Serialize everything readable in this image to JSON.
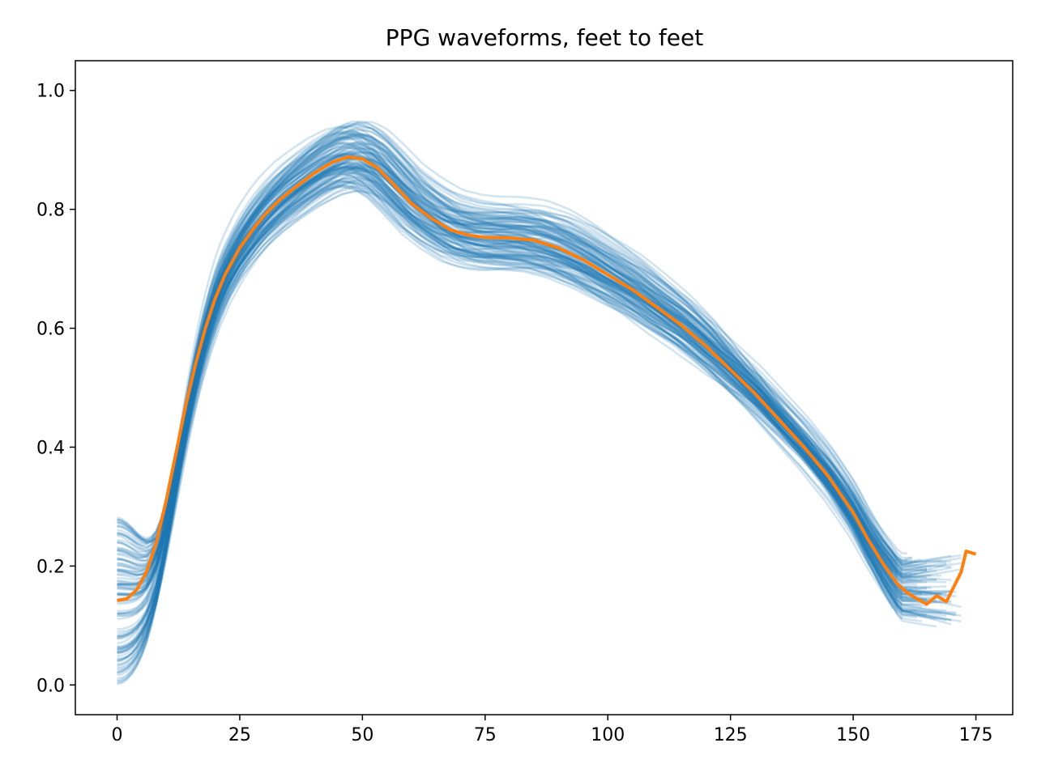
{
  "chart_data": {
    "type": "line",
    "title": "PPG waveforms, feet to feet",
    "xlabel": "",
    "ylabel": "",
    "xlim": [
      -8.5,
      182.5
    ],
    "ylim": [
      -0.05,
      1.05
    ],
    "x_ticks": [
      0,
      25,
      50,
      75,
      100,
      125,
      150,
      175
    ],
    "y_ticks": [
      0.0,
      0.2,
      0.4,
      0.6,
      0.8,
      1.0
    ],
    "x_tick_labels": [
      "0",
      "25",
      "50",
      "75",
      "100",
      "125",
      "150",
      "175"
    ],
    "y_tick_labels": [
      "0.0",
      "0.2",
      "0.4",
      "0.6",
      "0.8",
      "1.0"
    ],
    "grid": false,
    "legend": "none",
    "colors": {
      "individual": "#1f77b4",
      "mean": "#ff7f0e",
      "axes": "#000000"
    },
    "individual_series": {
      "description_count": 120,
      "alpha": 0.2,
      "start_range": [
        0.0,
        0.285
      ],
      "peak_x_range": [
        43,
        52
      ],
      "peak_y_range": [
        0.81,
        1.0
      ],
      "end_x_range": [
        158,
        173
      ],
      "end_y_range": [
        0.0,
        0.23
      ]
    },
    "series": [
      {
        "x": [
          0,
          2,
          4,
          6,
          8,
          10,
          12,
          14,
          16,
          18,
          20,
          22,
          25,
          28,
          30,
          33,
          36,
          40,
          44,
          47,
          50,
          53,
          56,
          60,
          64,
          68,
          72,
          75,
          80,
          85,
          90,
          95,
          100,
          105,
          110,
          115,
          120,
          125,
          130,
          135,
          140,
          145,
          150,
          153,
          156,
          159,
          161,
          163,
          165,
          167,
          169,
          172,
          173,
          175
        ],
        "y": [
          0.142,
          0.145,
          0.16,
          0.19,
          0.24,
          0.31,
          0.39,
          0.47,
          0.54,
          0.6,
          0.65,
          0.69,
          0.735,
          0.77,
          0.79,
          0.815,
          0.835,
          0.86,
          0.88,
          0.888,
          0.885,
          0.87,
          0.845,
          0.81,
          0.785,
          0.765,
          0.756,
          0.753,
          0.752,
          0.748,
          0.735,
          0.715,
          0.69,
          0.665,
          0.635,
          0.605,
          0.57,
          0.53,
          0.49,
          0.445,
          0.4,
          0.35,
          0.29,
          0.245,
          0.205,
          0.17,
          0.155,
          0.145,
          0.136,
          0.15,
          0.14,
          0.19,
          0.225,
          0.22
        ]
      }
    ]
  }
}
